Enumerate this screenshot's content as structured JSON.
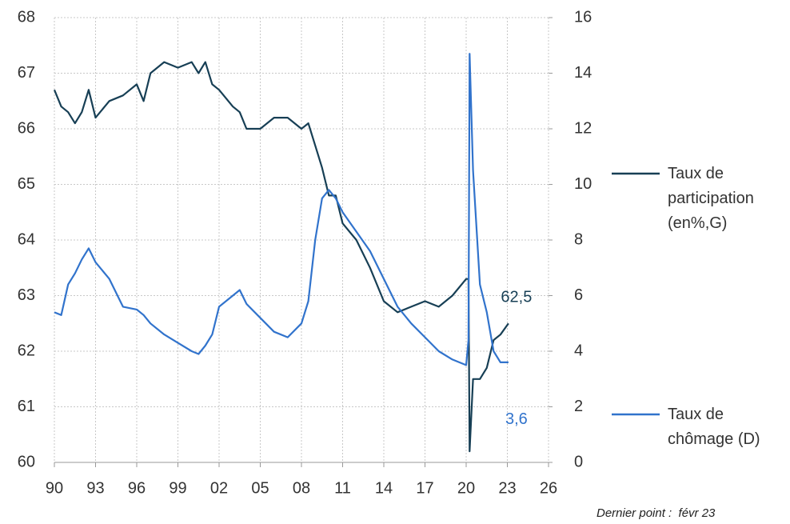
{
  "chart_data": {
    "type": "line",
    "x": [
      1990,
      1990.5,
      1991,
      1991.5,
      1992,
      1992.5,
      1993,
      1994,
      1995,
      1996,
      1996.5,
      1997,
      1998,
      1999,
      2000,
      2000.5,
      2001,
      2001.5,
      2002,
      2003,
      2003.5,
      2004,
      2005,
      2006,
      2007,
      2008,
      2008.5,
      2009,
      2009.5,
      2010,
      2010.5,
      2011,
      2012,
      2013,
      2014,
      2015,
      2016,
      2017,
      2018,
      2019,
      2020,
      2020.17,
      2020.25,
      2020.5,
      2021,
      2021.5,
      2022,
      2022.5,
      2023.08
    ],
    "series": [
      {
        "name": "Taux de participation (en%,G)",
        "color": "#173f55",
        "axis": "y",
        "values": [
          66.7,
          66.4,
          66.3,
          66.1,
          66.3,
          66.7,
          66.2,
          66.5,
          66.6,
          66.8,
          66.5,
          67.0,
          67.2,
          67.1,
          67.2,
          67.0,
          67.2,
          66.8,
          66.7,
          66.4,
          66.3,
          66.0,
          66.0,
          66.2,
          66.2,
          66.0,
          66.1,
          65.7,
          65.3,
          64.8,
          64.8,
          64.3,
          64.0,
          63.5,
          62.9,
          62.7,
          62.8,
          62.9,
          62.8,
          63.0,
          63.3,
          63.3,
          60.2,
          61.5,
          61.5,
          61.7,
          62.2,
          62.3,
          62.5
        ],
        "value_labels": [
          null,
          null,
          null,
          null,
          null,
          null,
          null,
          null,
          null,
          null,
          null,
          null,
          null,
          null,
          null,
          null,
          null,
          null,
          null,
          null,
          null,
          null,
          null,
          null,
          null,
          null,
          null,
          null,
          null,
          null,
          null,
          null,
          null,
          null,
          null,
          null,
          null,
          null,
          null,
          null,
          null,
          null,
          null,
          null,
          null,
          null,
          null,
          null,
          "62,5"
        ]
      },
      {
        "name": "Taux de chômage (D)",
        "color": "#3173cc",
        "axis": "y2",
        "values": [
          5.4,
          5.3,
          6.4,
          6.8,
          7.3,
          7.7,
          7.2,
          6.6,
          5.6,
          5.5,
          5.3,
          5.0,
          4.6,
          4.3,
          4.0,
          3.9,
          4.2,
          4.6,
          5.6,
          6.0,
          6.2,
          5.7,
          5.2,
          4.7,
          4.5,
          5.0,
          5.8,
          8.0,
          9.5,
          9.8,
          9.5,
          9.0,
          8.3,
          7.6,
          6.6,
          5.6,
          5.0,
          4.5,
          4.0,
          3.7,
          3.5,
          4.4,
          14.7,
          10.5,
          6.4,
          5.4,
          4.0,
          3.6,
          3.6
        ],
        "value_labels": [
          null,
          null,
          null,
          null,
          null,
          null,
          null,
          null,
          null,
          null,
          null,
          null,
          null,
          null,
          null,
          null,
          null,
          null,
          null,
          null,
          null,
          null,
          null,
          null,
          null,
          null,
          null,
          null,
          null,
          null,
          null,
          null,
          null,
          null,
          null,
          null,
          null,
          null,
          null,
          null,
          null,
          null,
          null,
          null,
          null,
          null,
          null,
          null,
          "3,6"
        ]
      }
    ],
    "xlim": [
      1990,
      2026
    ],
    "xticks": [
      {
        "value": 1990,
        "label": "90"
      },
      {
        "value": 1993,
        "label": "93"
      },
      {
        "value": 1996,
        "label": "96"
      },
      {
        "value": 1999,
        "label": "99"
      },
      {
        "value": 2002,
        "label": "02"
      },
      {
        "value": 2005,
        "label": "05"
      },
      {
        "value": 2008,
        "label": "08"
      },
      {
        "value": 2011,
        "label": "11"
      },
      {
        "value": 2014,
        "label": "14"
      },
      {
        "value": 2017,
        "label": "17"
      },
      {
        "value": 2020,
        "label": "20"
      },
      {
        "value": 2023,
        "label": "23"
      },
      {
        "value": 2026,
        "label": "26"
      }
    ],
    "ylim": [
      60,
      68
    ],
    "yticks": [
      60,
      61,
      62,
      63,
      64,
      65,
      66,
      67,
      68
    ],
    "y2lim": [
      0,
      16
    ],
    "y2ticks": [
      0,
      2,
      4,
      6,
      8,
      10,
      12,
      14,
      16
    ],
    "grid": true,
    "note": "Dernier point :  févr 23"
  }
}
